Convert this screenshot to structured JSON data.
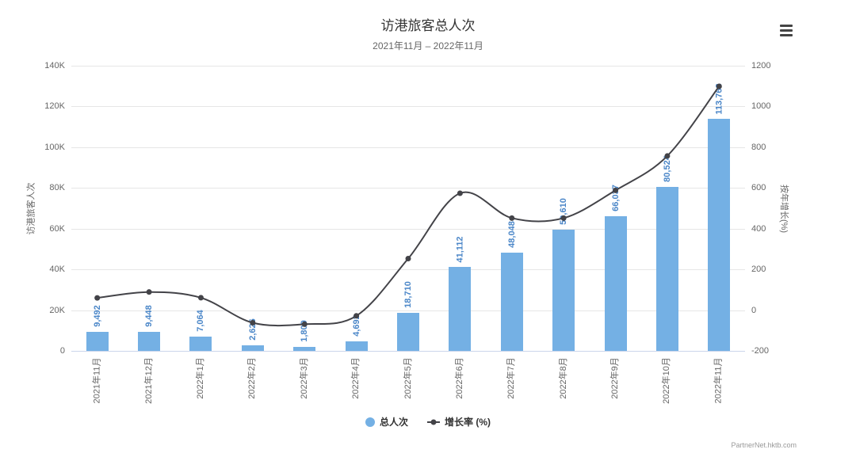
{
  "header": {
    "title": "访港旅客总人次",
    "subtitle": "2021年11月 – 2022年11月"
  },
  "credits": "PartnerNet.hktb.com",
  "legend": [
    {
      "symbol": "circle",
      "color": "#74b0e4",
      "label": "总人次"
    },
    {
      "symbol": "line-marker",
      "color": "#434348",
      "label": "增长率 (%)"
    }
  ],
  "chart_data": {
    "type": "bar",
    "subtype": "combo-column-spline",
    "categories": [
      "2021年11月",
      "2021年12月",
      "2022年1月",
      "2022年2月",
      "2022年3月",
      "2022年4月",
      "2022年5月",
      "2022年6月",
      "2022年7月",
      "2022年8月",
      "2022年9月",
      "2022年10月",
      "2022年11月"
    ],
    "series": [
      {
        "name": "总人次",
        "type": "bar",
        "axis": "left",
        "color": "#74b0e4",
        "values": [
          9492,
          9448,
          7064,
          2626,
          1809,
          4692,
          18710,
          41112,
          48048,
          59610,
          66037,
          80524,
          113763
        ],
        "labels": [
          "9,492",
          "9,448",
          "7,064",
          "2,626",
          "1,809",
          "4,692",
          "18,710",
          "41,112",
          "48,048",
          "59,610",
          "66,037",
          "80,524",
          "113,763"
        ]
      },
      {
        "name": "增长率 (%)",
        "type": "line",
        "axis": "right",
        "color": "#434348",
        "values": [
          60,
          89,
          61,
          -62,
          -69,
          -28,
          253,
          574,
          452,
          452,
          588,
          757,
          1099
        ]
      }
    ],
    "y_left": {
      "title": "访港旅客人次",
      "min": 0,
      "max": 140000,
      "tick": 20000,
      "tick_labels": [
        "0",
        "20K",
        "40K",
        "60K",
        "80K",
        "100K",
        "120K",
        "140K"
      ]
    },
    "y_right": {
      "title": "按年增长(%)",
      "min": -200,
      "max": 1200,
      "tick": 200,
      "tick_labels": [
        "-200",
        "0",
        "200",
        "400",
        "600",
        "800",
        "1000",
        "1200"
      ]
    },
    "grid": true,
    "legend_position": "bottom-center"
  }
}
